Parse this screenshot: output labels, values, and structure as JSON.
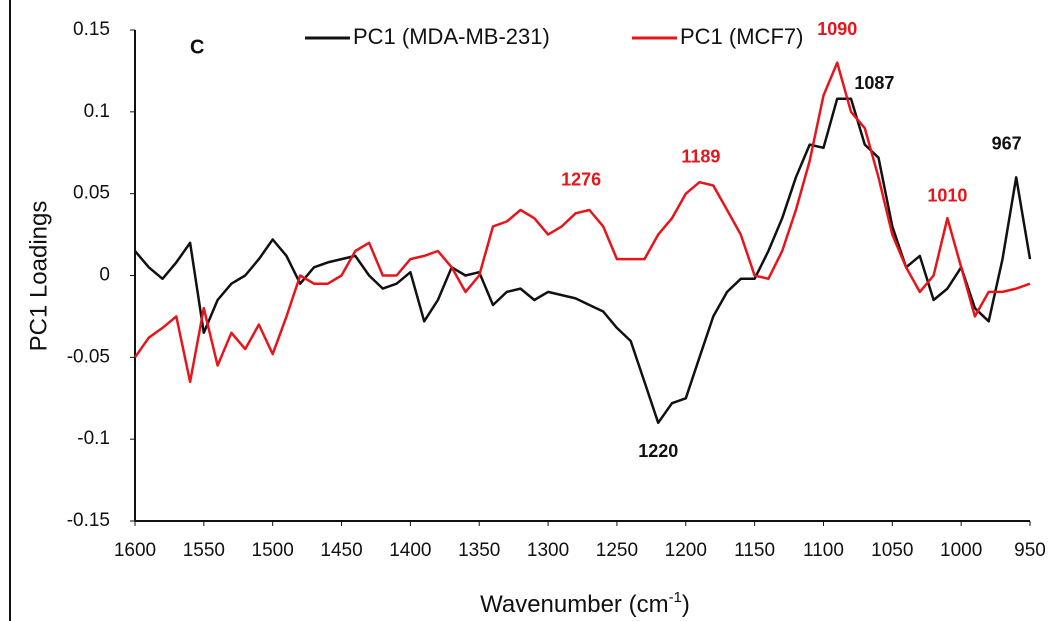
{
  "chart_data": {
    "type": "line",
    "panel_label": "C",
    "y_label": "PC1 Loadings",
    "x_label": {
      "main": "Wavenumber (cm",
      "superscript": "-1",
      "close": ")"
    },
    "xlim": [
      1600,
      950
    ],
    "xticks": [
      1600,
      1550,
      1500,
      1450,
      1400,
      1350,
      1300,
      1250,
      1200,
      1150,
      1100,
      1050,
      1000,
      950
    ],
    "ylim": [
      -0.15,
      0.15
    ],
    "yticks": [
      0.15,
      0.1,
      0.05,
      0,
      -0.05,
      -0.1,
      -0.15
    ],
    "grid": false,
    "legend": "top",
    "x": [
      1600,
      1590,
      1580,
      1570,
      1560,
      1550,
      1540,
      1530,
      1520,
      1510,
      1500,
      1490,
      1480,
      1470,
      1460,
      1450,
      1440,
      1430,
      1420,
      1410,
      1400,
      1390,
      1380,
      1370,
      1360,
      1350,
      1340,
      1330,
      1320,
      1310,
      1300,
      1290,
      1280,
      1270,
      1260,
      1250,
      1240,
      1230,
      1220,
      1210,
      1200,
      1190,
      1180,
      1170,
      1160,
      1150,
      1140,
      1130,
      1120,
      1110,
      1100,
      1090,
      1080,
      1070,
      1060,
      1050,
      1040,
      1030,
      1020,
      1010,
      1000,
      990,
      980,
      970,
      960,
      950
    ],
    "series": [
      {
        "name": "PC1 (MDA-MB-231)",
        "color": "#111111",
        "values": [
          0.015,
          0.005,
          -0.002,
          0.008,
          0.02,
          -0.035,
          -0.015,
          -0.005,
          0.0,
          0.01,
          0.022,
          0.012,
          -0.005,
          0.005,
          0.008,
          0.01,
          0.012,
          0.0,
          -0.008,
          -0.005,
          0.002,
          -0.028,
          -0.015,
          0.005,
          0.0,
          0.002,
          -0.018,
          -0.01,
          -0.008,
          -0.015,
          -0.01,
          -0.012,
          -0.014,
          -0.018,
          -0.022,
          -0.032,
          -0.04,
          -0.065,
          -0.09,
          -0.078,
          -0.075,
          -0.05,
          -0.025,
          -0.01,
          -0.002,
          -0.002,
          0.015,
          0.035,
          0.06,
          0.08,
          0.078,
          0.108,
          0.108,
          0.08,
          0.072,
          0.03,
          0.005,
          0.012,
          -0.015,
          -0.008,
          0.005,
          -0.02,
          -0.028,
          0.01,
          0.06,
          0.01
        ]
      },
      {
        "name": "PC1 (MCF7)",
        "color": "#e8141b",
        "values": [
          -0.05,
          -0.038,
          -0.032,
          -0.025,
          -0.065,
          -0.02,
          -0.055,
          -0.035,
          -0.045,
          -0.03,
          -0.048,
          -0.025,
          0.0,
          -0.005,
          -0.005,
          0.0,
          0.015,
          0.02,
          0.0,
          0.0,
          0.01,
          0.012,
          0.015,
          0.005,
          -0.01,
          0.0,
          0.03,
          0.033,
          0.04,
          0.035,
          0.025,
          0.03,
          0.038,
          0.04,
          0.03,
          0.01,
          0.01,
          0.01,
          0.025,
          0.035,
          0.05,
          0.057,
          0.055,
          0.04,
          0.025,
          0.0,
          -0.002,
          0.015,
          0.04,
          0.07,
          0.11,
          0.13,
          0.1,
          0.09,
          0.06,
          0.025,
          0.005,
          -0.01,
          0.0,
          0.035,
          0.005,
          -0.025,
          -0.01,
          -0.01,
          -0.008,
          -0.005
        ]
      }
    ],
    "annotations": [
      {
        "text": "1276",
        "x": 1276,
        "y": 0.058,
        "color": "#e8141b"
      },
      {
        "text": "1189",
        "x": 1189,
        "y": 0.072,
        "color": "#e8141b"
      },
      {
        "text": "1090",
        "x": 1090,
        "y": 0.15,
        "color": "#e8141b"
      },
      {
        "text": "1087",
        "x": 1063,
        "y": 0.117,
        "color": "#111111"
      },
      {
        "text": "1010",
        "x": 1010,
        "y": 0.048,
        "color": "#e8141b"
      },
      {
        "text": "967",
        "x": 967,
        "y": 0.08,
        "color": "#111111"
      },
      {
        "text": "1220",
        "x": 1220,
        "y": -0.108,
        "color": "#111111"
      }
    ]
  }
}
